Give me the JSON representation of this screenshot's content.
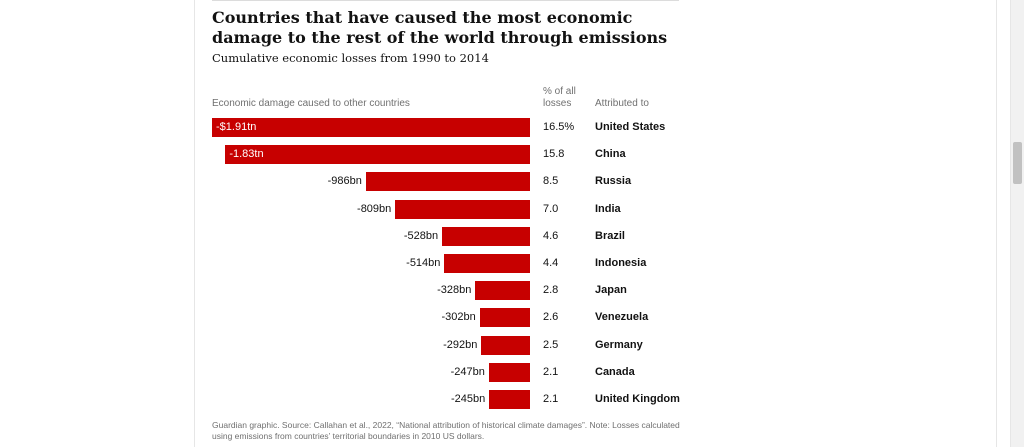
{
  "page": {
    "title": "Countries that have caused the most economic damage to the rest of the world through emissions",
    "subtitle": "Cumulative economic losses from 1990 to 2014",
    "footnote": "Guardian graphic. Source: Callahan et al., 2022, “National attribution of historical climate damages”. Note: Losses calculated using emissions from countries’ territorial boundaries in 2010 US dollars."
  },
  "chart_data": {
    "type": "bar",
    "orientation": "horizontal",
    "title": "Countries that have caused the most economic damage to the rest of the world through emissions",
    "subtitle": "Cumulative economic losses from 1990 to 2014",
    "column_headers": {
      "bars": "Economic damage caused to other countries",
      "pct": "% of all losses",
      "country": "Attributed to"
    },
    "unit": "bn",
    "categories": [
      "United States",
      "China",
      "Russia",
      "India",
      "Brazil",
      "Indonesia",
      "Japan",
      "Venezuela",
      "Germany",
      "Canada",
      "United Kingdom"
    ],
    "values": [
      -1910,
      -1830,
      -986,
      -809,
      -528,
      -514,
      -328,
      -302,
      -292,
      -247,
      -245
    ],
    "value_labels": [
      "-$1.91tn",
      "-1.83tn",
      "-986bn",
      "-809bn",
      "-528bn",
      "-514bn",
      "-328bn",
      "-302bn",
      "-292bn",
      "-247bn",
      "-245bn"
    ],
    "pct_labels": [
      "16.5%",
      "15.8",
      "8.5",
      "7.0",
      "4.6",
      "4.4",
      "2.8",
      "2.6",
      "2.5",
      "2.1",
      "2.1"
    ],
    "xlim": [
      -1910,
      0
    ],
    "bar_color": "#c70000"
  }
}
